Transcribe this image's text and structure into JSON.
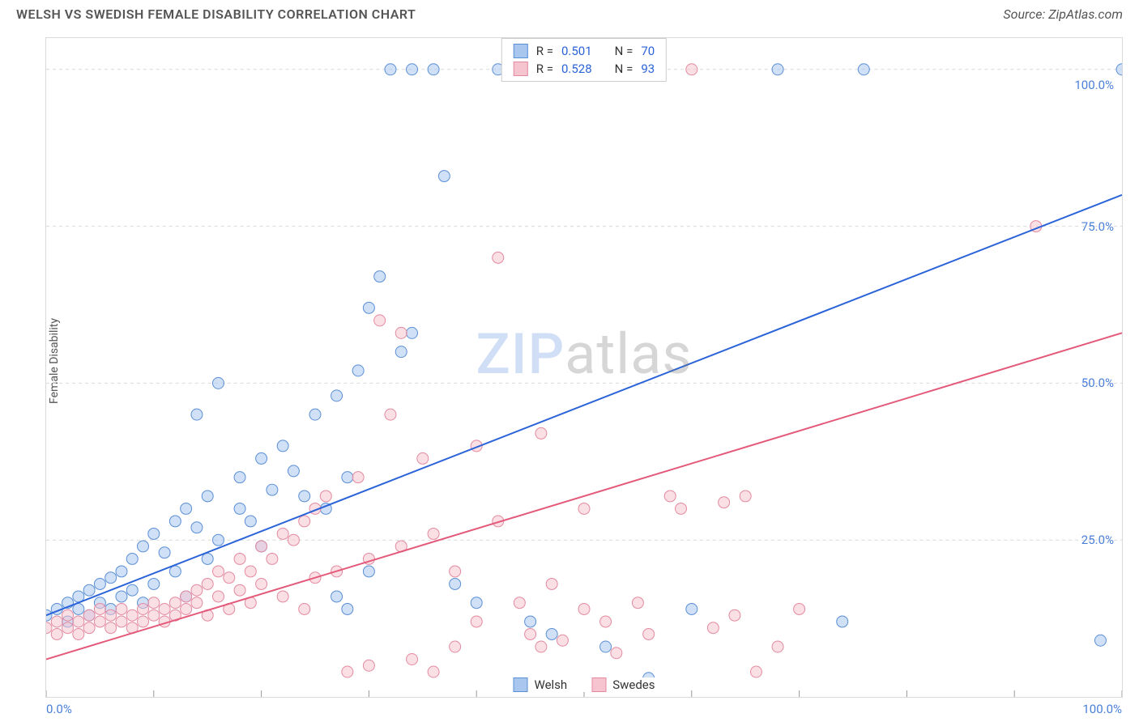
{
  "header": {
    "title": "WELSH VS SWEDISH FEMALE DISABILITY CORRELATION CHART",
    "source_prefix": "Source: ",
    "source_name": "ZipAtlas.com"
  },
  "ylabel": "Female Disability",
  "watermark": {
    "part1": "ZIP",
    "part2": "atlas"
  },
  "chart": {
    "type": "scatter",
    "xlim": [
      0,
      100
    ],
    "ylim": [
      0,
      105
    ],
    "background_color": "#ffffff",
    "grid_color": "#d9d9d9",
    "axis_color": "#d9d9d9",
    "tick_color": "#999999",
    "yticks": [
      25,
      50,
      75,
      100
    ],
    "ytick_labels": [
      "25.0%",
      "50.0%",
      "75.0%",
      "100.0%"
    ],
    "ytick_label_color": "#4a7fd8",
    "xticks": [
      0,
      10,
      20,
      30,
      40,
      50,
      60,
      70,
      80,
      90,
      100
    ],
    "xtick_end_labels": {
      "left": "0.0%",
      "right": "100.0%"
    },
    "xtick_label_color": "#4a7fd8",
    "marker_radius": 7,
    "marker_opacity": 0.55,
    "series": [
      {
        "name": "Welsh",
        "color_fill": "#a9c6ef",
        "color_stroke": "#5b8fd6",
        "trend_color": "#2b63d8",
        "trend_width": 2,
        "R": "0.501",
        "N": "70",
        "trend": {
          "x1": 0,
          "y1": 13,
          "x2": 100,
          "y2": 80
        },
        "points": [
          [
            0,
            13
          ],
          [
            1,
            14
          ],
          [
            2,
            12
          ],
          [
            2,
            15
          ],
          [
            3,
            14
          ],
          [
            3,
            16
          ],
          [
            4,
            13
          ],
          [
            4,
            17
          ],
          [
            5,
            15
          ],
          [
            5,
            18
          ],
          [
            6,
            14
          ],
          [
            6,
            19
          ],
          [
            7,
            16
          ],
          [
            7,
            20
          ],
          [
            8,
            22
          ],
          [
            8,
            17
          ],
          [
            9,
            24
          ],
          [
            9,
            15
          ],
          [
            10,
            26
          ],
          [
            10,
            18
          ],
          [
            11,
            23
          ],
          [
            12,
            28
          ],
          [
            12,
            20
          ],
          [
            13,
            30
          ],
          [
            14,
            27
          ],
          [
            15,
            32
          ],
          [
            15,
            22
          ],
          [
            16,
            25
          ],
          [
            18,
            35
          ],
          [
            18,
            30
          ],
          [
            19,
            28
          ],
          [
            20,
            38
          ],
          [
            20,
            24
          ],
          [
            21,
            33
          ],
          [
            22,
            40
          ],
          [
            23,
            36
          ],
          [
            24,
            32
          ],
          [
            25,
            45
          ],
          [
            26,
            30
          ],
          [
            27,
            48
          ],
          [
            27,
            16
          ],
          [
            28,
            35
          ],
          [
            28,
            14
          ],
          [
            29,
            52
          ],
          [
            30,
            62
          ],
          [
            30,
            20
          ],
          [
            31,
            67
          ],
          [
            32,
            100
          ],
          [
            33,
            55
          ],
          [
            34,
            58
          ],
          [
            36,
            100
          ],
          [
            37,
            83
          ],
          [
            38,
            18
          ],
          [
            40,
            15
          ],
          [
            42,
            100
          ],
          [
            45,
            12
          ],
          [
            47,
            10
          ],
          [
            52,
            8
          ],
          [
            55,
            2
          ],
          [
            56,
            3
          ],
          [
            60,
            14
          ],
          [
            68,
            100
          ],
          [
            74,
            12
          ],
          [
            76,
            100
          ],
          [
            98,
            9
          ],
          [
            100,
            100
          ],
          [
            16,
            50
          ],
          [
            14,
            45
          ],
          [
            13,
            16
          ],
          [
            34,
            100
          ]
        ]
      },
      {
        "name": "Swedes",
        "color_fill": "#f5c4cf",
        "color_stroke": "#e48aa0",
        "trend_color": "#e35a7a",
        "trend_width": 2,
        "R": "0.528",
        "N": "93",
        "trend": {
          "x1": 0,
          "y1": 6,
          "x2": 100,
          "y2": 58
        },
        "points": [
          [
            0,
            11
          ],
          [
            1,
            12
          ],
          [
            1,
            10
          ],
          [
            2,
            11
          ],
          [
            2,
            13
          ],
          [
            3,
            12
          ],
          [
            3,
            10
          ],
          [
            4,
            13
          ],
          [
            4,
            11
          ],
          [
            5,
            12
          ],
          [
            5,
            14
          ],
          [
            6,
            13
          ],
          [
            6,
            11
          ],
          [
            7,
            12
          ],
          [
            7,
            14
          ],
          [
            8,
            13
          ],
          [
            8,
            11
          ],
          [
            9,
            14
          ],
          [
            9,
            12
          ],
          [
            10,
            13
          ],
          [
            10,
            15
          ],
          [
            11,
            14
          ],
          [
            11,
            12
          ],
          [
            12,
            15
          ],
          [
            12,
            13
          ],
          [
            13,
            16
          ],
          [
            13,
            14
          ],
          [
            14,
            17
          ],
          [
            14,
            15
          ],
          [
            15,
            18
          ],
          [
            15,
            13
          ],
          [
            16,
            20
          ],
          [
            16,
            16
          ],
          [
            17,
            19
          ],
          [
            17,
            14
          ],
          [
            18,
            22
          ],
          [
            18,
            17
          ],
          [
            19,
            20
          ],
          [
            19,
            15
          ],
          [
            20,
            24
          ],
          [
            20,
            18
          ],
          [
            21,
            22
          ],
          [
            22,
            26
          ],
          [
            22,
            16
          ],
          [
            23,
            25
          ],
          [
            24,
            28
          ],
          [
            24,
            14
          ],
          [
            25,
            30
          ],
          [
            25,
            19
          ],
          [
            26,
            32
          ],
          [
            27,
            20
          ],
          [
            28,
            4
          ],
          [
            29,
            35
          ],
          [
            30,
            22
          ],
          [
            30,
            5
          ],
          [
            31,
            60
          ],
          [
            32,
            45
          ],
          [
            33,
            24
          ],
          [
            33,
            58
          ],
          [
            34,
            6
          ],
          [
            35,
            38
          ],
          [
            36,
            26
          ],
          [
            36,
            4
          ],
          [
            38,
            8
          ],
          [
            40,
            40
          ],
          [
            40,
            12
          ],
          [
            42,
            28
          ],
          [
            42,
            70
          ],
          [
            44,
            15
          ],
          [
            45,
            10
          ],
          [
            46,
            42
          ],
          [
            47,
            18
          ],
          [
            48,
            9
          ],
          [
            50,
            14
          ],
          [
            50,
            30
          ],
          [
            52,
            12
          ],
          [
            53,
            7
          ],
          [
            54,
            2
          ],
          [
            55,
            15
          ],
          [
            56,
            10
          ],
          [
            58,
            32
          ],
          [
            59,
            30
          ],
          [
            60,
            100
          ],
          [
            62,
            11
          ],
          [
            63,
            31
          ],
          [
            64,
            13
          ],
          [
            65,
            32
          ],
          [
            66,
            4
          ],
          [
            68,
            8
          ],
          [
            70,
            14
          ],
          [
            92,
            75
          ],
          [
            46,
            8
          ],
          [
            38,
            20
          ]
        ]
      }
    ]
  },
  "legend_top": {
    "r_label": "R =",
    "n_label": "N =",
    "value_color": "#2b63d8"
  },
  "legend_bottom": {
    "items": [
      "Welsh",
      "Swedes"
    ]
  }
}
